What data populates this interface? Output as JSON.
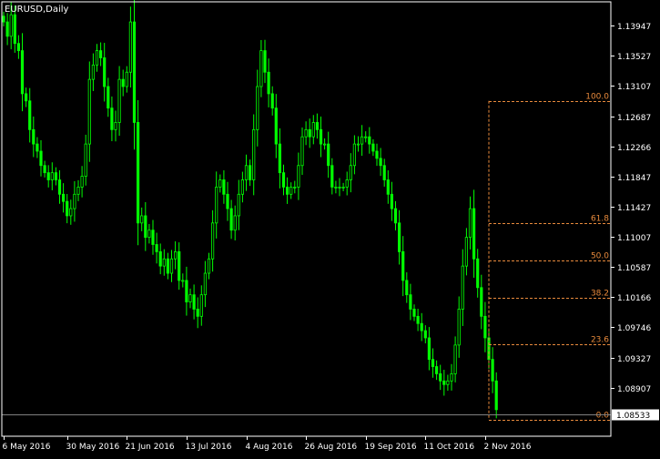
{
  "chart_data": {
    "type": "candlestick",
    "title": "EURUSD,Daily",
    "y_ticks": [
      "1.13947",
      "1.13527",
      "1.13107",
      "1.12687",
      "1.12266",
      "1.11847",
      "1.11427",
      "1.11007",
      "1.10587",
      "1.10166",
      "1.09746",
      "1.09327",
      "1.08907"
    ],
    "y_tick_values": [
      1.13947,
      1.13527,
      1.13107,
      1.12687,
      1.12266,
      1.11847,
      1.11427,
      1.11007,
      1.10587,
      1.10166,
      1.09746,
      1.09327,
      1.08907
    ],
    "ylim": [
      1.0823,
      1.1428
    ],
    "x_ticks": [
      {
        "label": "6 May 2016",
        "index": 0
      },
      {
        "label": "30 May 2016",
        "index": 17
      },
      {
        "label": "21 Jun 2016",
        "index": 33
      },
      {
        "label": "13 Jul 2016",
        "index": 49
      },
      {
        "label": "4 Aug 2016",
        "index": 65
      },
      {
        "label": "26 Aug 2016",
        "index": 81
      },
      {
        "label": "19 Sep 2016",
        "index": 97
      },
      {
        "label": "11 Oct 2016",
        "index": 113
      },
      {
        "label": "2 Nov 2016",
        "index": 129
      }
    ],
    "current_price": "1.08533",
    "current_price_value": 1.08533,
    "close_prices": [
      1.14,
      1.138,
      1.141,
      1.137,
      1.136,
      1.13,
      1.129,
      1.125,
      1.123,
      1.122,
      1.12,
      1.119,
      1.118,
      1.119,
      1.118,
      1.116,
      1.115,
      1.113,
      1.114,
      1.116,
      1.117,
      1.1185,
      1.123,
      1.132,
      1.134,
      1.136,
      1.135,
      1.131,
      1.128,
      1.125,
      1.126,
      1.132,
      1.131,
      1.133,
      1.14,
      1.126,
      1.112,
      1.113,
      1.11,
      1.111,
      1.109,
      1.108,
      1.106,
      1.107,
      1.105,
      1.107,
      1.108,
      1.104,
      1.104,
      1.101,
      1.102,
      1.1,
      1.099,
      1.102,
      1.105,
      1.107,
      1.112,
      1.117,
      1.118,
      1.116,
      1.114,
      1.111,
      1.113,
      1.116,
      1.118,
      1.12,
      1.118,
      1.125,
      1.131,
      1.136,
      1.133,
      1.13,
      1.128,
      1.123,
      1.119,
      1.117,
      1.116,
      1.117,
      1.117,
      1.12,
      1.124,
      1.125,
      1.124,
      1.126,
      1.125,
      1.123,
      1.123,
      1.12,
      1.117,
      1.117,
      1.117,
      1.117,
      1.118,
      1.12,
      1.123,
      1.123,
      1.124,
      1.124,
      1.123,
      1.122,
      1.121,
      1.12,
      1.118,
      1.116,
      1.114,
      1.112,
      1.108,
      1.104,
      1.102,
      1.1,
      1.099,
      1.098,
      1.097,
      1.096,
      1.093,
      1.092,
      1.091,
      1.09,
      1.0895,
      1.09,
      1.091,
      1.095,
      1.1,
      1.106,
      1.11,
      1.114,
      1.107,
      1.103,
      1.099,
      1.096,
      1.093,
      1.09,
      1.086
    ],
    "fibonacci": {
      "high": 1.129,
      "low": 1.0846,
      "levels": [
        {
          "label": "100.0",
          "ratio": 1.0
        },
        {
          "label": "61.8",
          "ratio": 0.618
        },
        {
          "label": "50.0",
          "ratio": 0.5
        },
        {
          "label": "38.2",
          "ratio": 0.382
        },
        {
          "label": "23.6",
          "ratio": 0.236
        },
        {
          "label": "0.0",
          "ratio": 0.0
        }
      ]
    }
  },
  "colors": {
    "background": "#000000",
    "candle": "#00ff00",
    "frame": "#ffffff",
    "fibo": "#e88a3c",
    "current_line": "#808080",
    "current_label_bg": "#ffffff",
    "current_label_fg": "#000000"
  }
}
